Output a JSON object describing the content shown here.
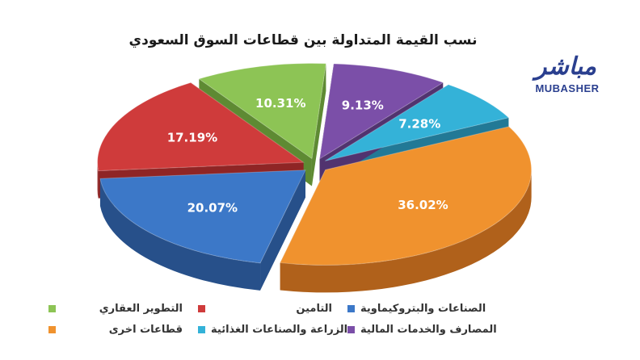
{
  "header": {
    "title": "نسب القيمة المتداولة بين قطاعات السوق السعودي"
  },
  "logo": {
    "arabic_text": "مباشر",
    "latin_text": "MUBASHER"
  },
  "chart_data": {
    "type": "pie",
    "title": "نسب القيمة المتداولة بين قطاعات السوق السعودي",
    "style": "3d-exploded",
    "legend_position": "bottom",
    "slices": [
      {
        "label": "قطاعات اخرى",
        "value": 36.02,
        "display": "36.02%",
        "color": "#f0922e",
        "dark": "#b0611b"
      },
      {
        "label": "الصناعات والبتروكيماوية",
        "value": 20.07,
        "display": "20.07%",
        "color": "#3c78c8",
        "dark": "#27508a"
      },
      {
        "label": "التامين",
        "value": 17.19,
        "display": "17.19%",
        "color": "#cf3b3b",
        "dark": "#8f2525"
      },
      {
        "label": "التطوير العقاري",
        "value": 10.31,
        "display": "10.31%",
        "color": "#8dc455",
        "dark": "#5e8a33"
      },
      {
        "label": "المصارف والخدمات المالية",
        "value": 9.13,
        "display": "9.13%",
        "color": "#7b4fa8",
        "dark": "#51336f"
      },
      {
        "label": "الزراعة والصناعات الغذائية",
        "value": 7.28,
        "display": "7.28%",
        "color": "#34b2d8",
        "dark": "#227996"
      }
    ]
  },
  "legend": {
    "items": [
      {
        "label": "الصناعات والبتروكيماوية",
        "color": "#3c78c8"
      },
      {
        "label": "التامين",
        "color": "#cf3b3b"
      },
      {
        "label": "التطوير العقاري",
        "color": "#8dc455"
      },
      {
        "label": "المصارف والخدمات المالية",
        "color": "#7b4fa8"
      },
      {
        "label": "الزراعة والصناعات الغذائية",
        "color": "#34b2d8"
      },
      {
        "label": "قطاعات اخرى",
        "color": "#f0922e"
      }
    ]
  }
}
